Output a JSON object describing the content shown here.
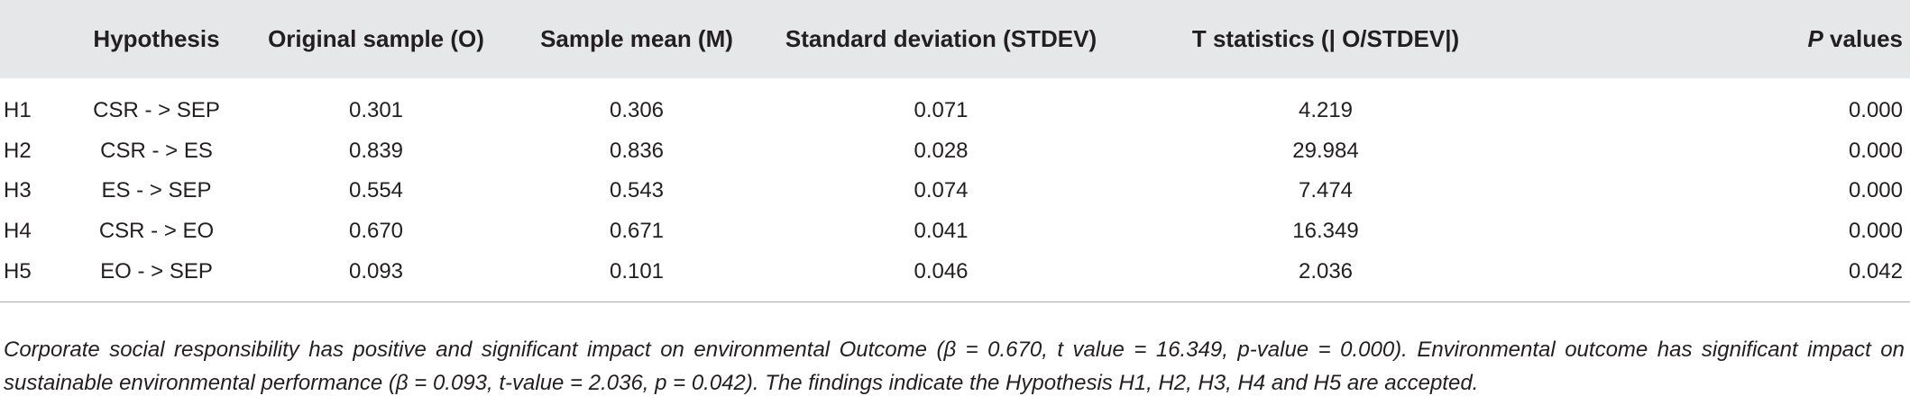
{
  "table": {
    "headers": [
      "",
      "Hypothesis",
      "Original sample (O)",
      "Sample mean (M)",
      "Standard deviation (STDEV)",
      "T statistics (| O/STDEV|)",
      "P",
      " values"
    ],
    "rows": [
      {
        "id": "H1",
        "hypothesis": "CSR - > SEP",
        "original": "0.301",
        "mean": "0.306",
        "stdev": "0.071",
        "t": "4.219",
        "p": "0.000"
      },
      {
        "id": "H2",
        "hypothesis": "CSR - > ES",
        "original": "0.839",
        "mean": "0.836",
        "stdev": "0.028",
        "t": "29.984",
        "p": "0.000"
      },
      {
        "id": "H3",
        "hypothesis": "ES - > SEP",
        "original": "0.554",
        "mean": "0.543",
        "stdev": "0.074",
        "t": "7.474",
        "p": "0.000"
      },
      {
        "id": "H4",
        "hypothesis": "CSR - > EO",
        "original": "0.670",
        "mean": "0.671",
        "stdev": "0.041",
        "t": "16.349",
        "p": "0.000"
      },
      {
        "id": "H5",
        "hypothesis": "EO - > SEP",
        "original": "0.093",
        "mean": "0.101",
        "stdev": "0.046",
        "t": "2.036",
        "p": "0.042"
      }
    ]
  },
  "footnote": "Corporate social responsibility has positive and significant impact on environmental Outcome (β = 0.670, t value = 16.349, p-value = 0.000). Environmental outcome has significant impact on sustainable environmental performance (β = 0.093, t-value = 2.036, p = 0.042). The findings indicate the Hypothesis H1, H2, H3, H4 and H5 are accepted.",
  "colors": {
    "header_background": "#e6e7e8",
    "text": "#231f20",
    "rule": "#a7a9ac"
  }
}
